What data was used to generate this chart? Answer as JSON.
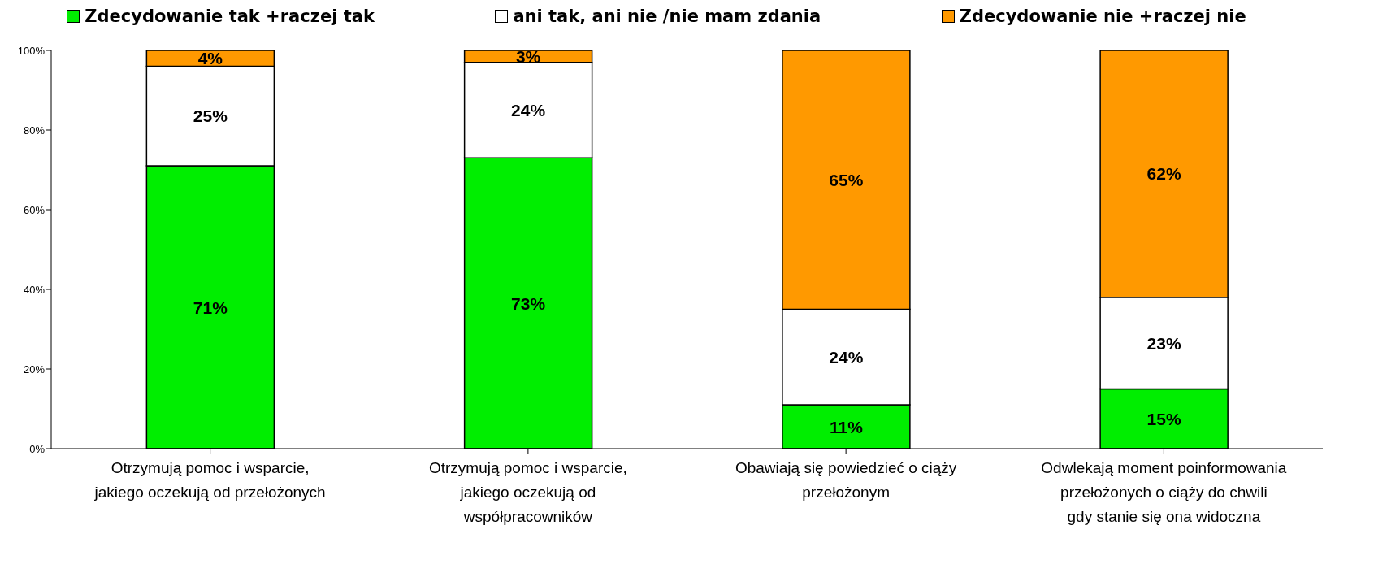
{
  "chart_data": {
    "type": "bar",
    "stacked": true,
    "categories": [
      "Otrzymują pomoc i wsparcie, jakiego oczekują od przełożonych",
      "Otrzymują pomoc i wsparcie, jakiego oczekują od współpracowników",
      "Obawiają się powiedzieć o ciąży przełożonym",
      "Odwlekają moment poinformowania przełożonych o ciąży do chwili gdy stanie się ona widoczna"
    ],
    "series": [
      {
        "name": "Zdecydowanie tak +raczej tak",
        "color": "#00ee00",
        "values": [
          71,
          73,
          11,
          15
        ],
        "value_labels": [
          "71%",
          "73%",
          "11%",
          "15%"
        ]
      },
      {
        "name": "ani tak, ani nie /nie mam zdania",
        "color": "#ffffff",
        "values": [
          25,
          24,
          24,
          23
        ],
        "value_labels": [
          "25%",
          "24%",
          "24%",
          "23%"
        ]
      },
      {
        "name": "Zdecydowanie nie +raczej nie",
        "color": "#ff9900",
        "values": [
          4,
          3,
          65,
          62
        ],
        "value_labels": [
          "4%",
          "3%",
          "65%",
          "62%"
        ]
      }
    ],
    "ylim": [
      0,
      100
    ],
    "yticks": [
      {
        "value": 0,
        "label": "0%"
      },
      {
        "value": 20,
        "label": "20%"
      },
      {
        "value": 40,
        "label": "40%"
      },
      {
        "value": 60,
        "label": "60%"
      },
      {
        "value": 80,
        "label": "80%"
      },
      {
        "value": 100,
        "label": "100%"
      }
    ],
    "grid": false,
    "legend": "top"
  }
}
